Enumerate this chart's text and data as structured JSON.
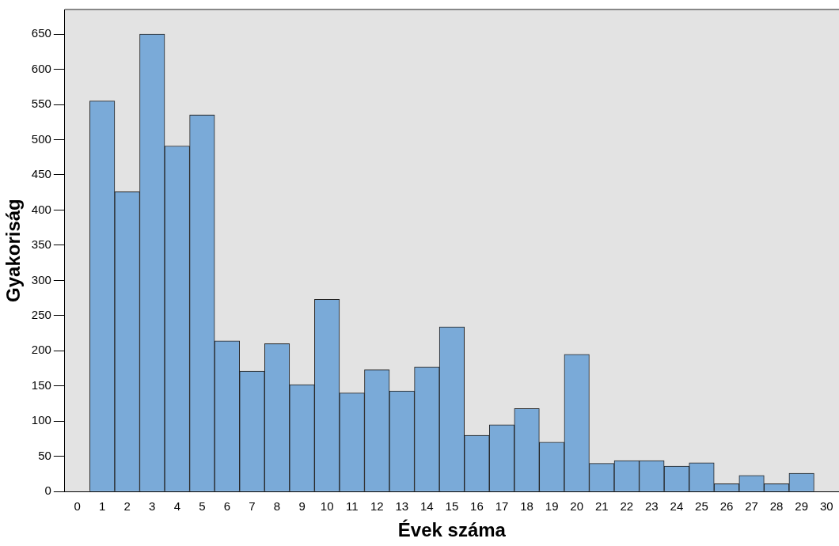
{
  "chart_data": {
    "type": "histogram",
    "xlabel": "Évek száma",
    "ylabel": "Gyakoriság",
    "bins": [
      0.5,
      1.5,
      2.5,
      3.5,
      4.5,
      5.5,
      6.5,
      7.5,
      8.5,
      9.5,
      10.5,
      11.5,
      12.5,
      13.5,
      14.5,
      15.5,
      16.5,
      17.5,
      18.5,
      19.5,
      20.5,
      21.5,
      22.5,
      23.5,
      24.5,
      25.5,
      26.5,
      27.5,
      28.5,
      29.5
    ],
    "values": [
      555,
      426,
      650,
      491,
      535,
      214,
      171,
      210,
      152,
      273,
      140,
      173,
      143,
      177,
      234,
      80,
      95,
      118,
      70,
      195,
      40,
      44,
      44,
      36,
      41,
      11,
      23,
      11,
      26
    ],
    "color": "#7aaad8",
    "xlim": [
      -0.5,
      30.5
    ],
    "xticks": [
      0,
      1,
      2,
      3,
      4,
      5,
      6,
      7,
      8,
      9,
      10,
      11,
      12,
      13,
      14,
      15,
      16,
      17,
      18,
      19,
      20,
      21,
      22,
      23,
      24,
      25,
      26,
      27,
      28,
      29,
      30
    ],
    "ylim": [
      0,
      685
    ],
    "yticks": [
      0,
      50,
      100,
      150,
      200,
      250,
      300,
      350,
      400,
      450,
      500,
      550,
      600,
      650
    ],
    "grid": false,
    "legend": false
  }
}
